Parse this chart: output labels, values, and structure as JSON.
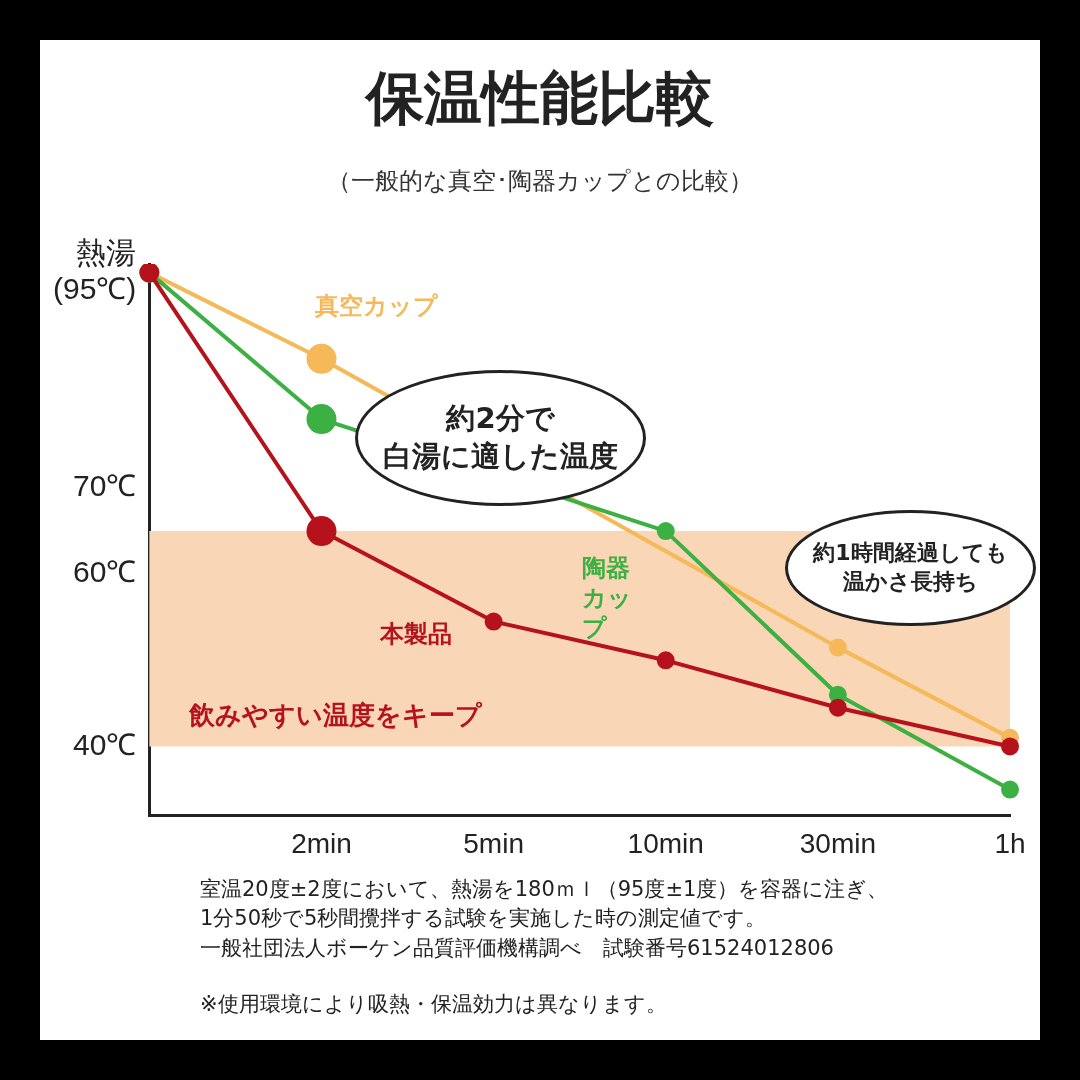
{
  "chart_data": {
    "type": "line",
    "title": "保温性能比較",
    "subtitle": "（一般的な真空･陶器カップとの比較）",
    "categories": [
      null,
      "2min",
      "5min",
      "10min",
      "30min",
      "1h"
    ],
    "series": [
      {
        "name": "真空カップ",
        "color": "#f5b95a",
        "values": [
          95,
          85,
          null,
          null,
          51.5,
          41
        ]
      },
      {
        "name": "陶器カップ",
        "color": "#3cb043",
        "values": [
          95,
          78,
          null,
          65,
          46,
          35
        ]
      },
      {
        "name": "本製品",
        "color": "#b5121b",
        "values": [
          95,
          65,
          54.5,
          50,
          44.5,
          40
        ]
      }
    ],
    "ylim": [
      32,
      96
    ],
    "yticks": [
      {
        "value": 40,
        "label": "40℃"
      },
      {
        "value": 60,
        "label": "60℃"
      },
      {
        "value": 70,
        "label": "70℃"
      },
      {
        "value": 95,
        "label": "熱湯\n(95℃)"
      }
    ],
    "bands": [
      {
        "axis": "y",
        "from": 40,
        "to": 65,
        "label": "飲みやすい温度をキープ",
        "color": "#f9d6b6"
      }
    ],
    "marker": "circle",
    "grid": false,
    "legend": false,
    "annotations": [
      "約2分で",
      "白湯に適した温度",
      "約1時間経過しても",
      "温かさ長持ち",
      "室温20度±2度において、熱湯を180ｍｌ（95度±1度）を容器に注ぎ、",
      "1分50秒で5秒間攪拌する試験を実施した時の測定値です。",
      "一般社団法人ボーケン品質評価機構調べ　試験番号61524012806",
      "※使用環境により吸熱・保温効力は異なります。"
    ]
  }
}
